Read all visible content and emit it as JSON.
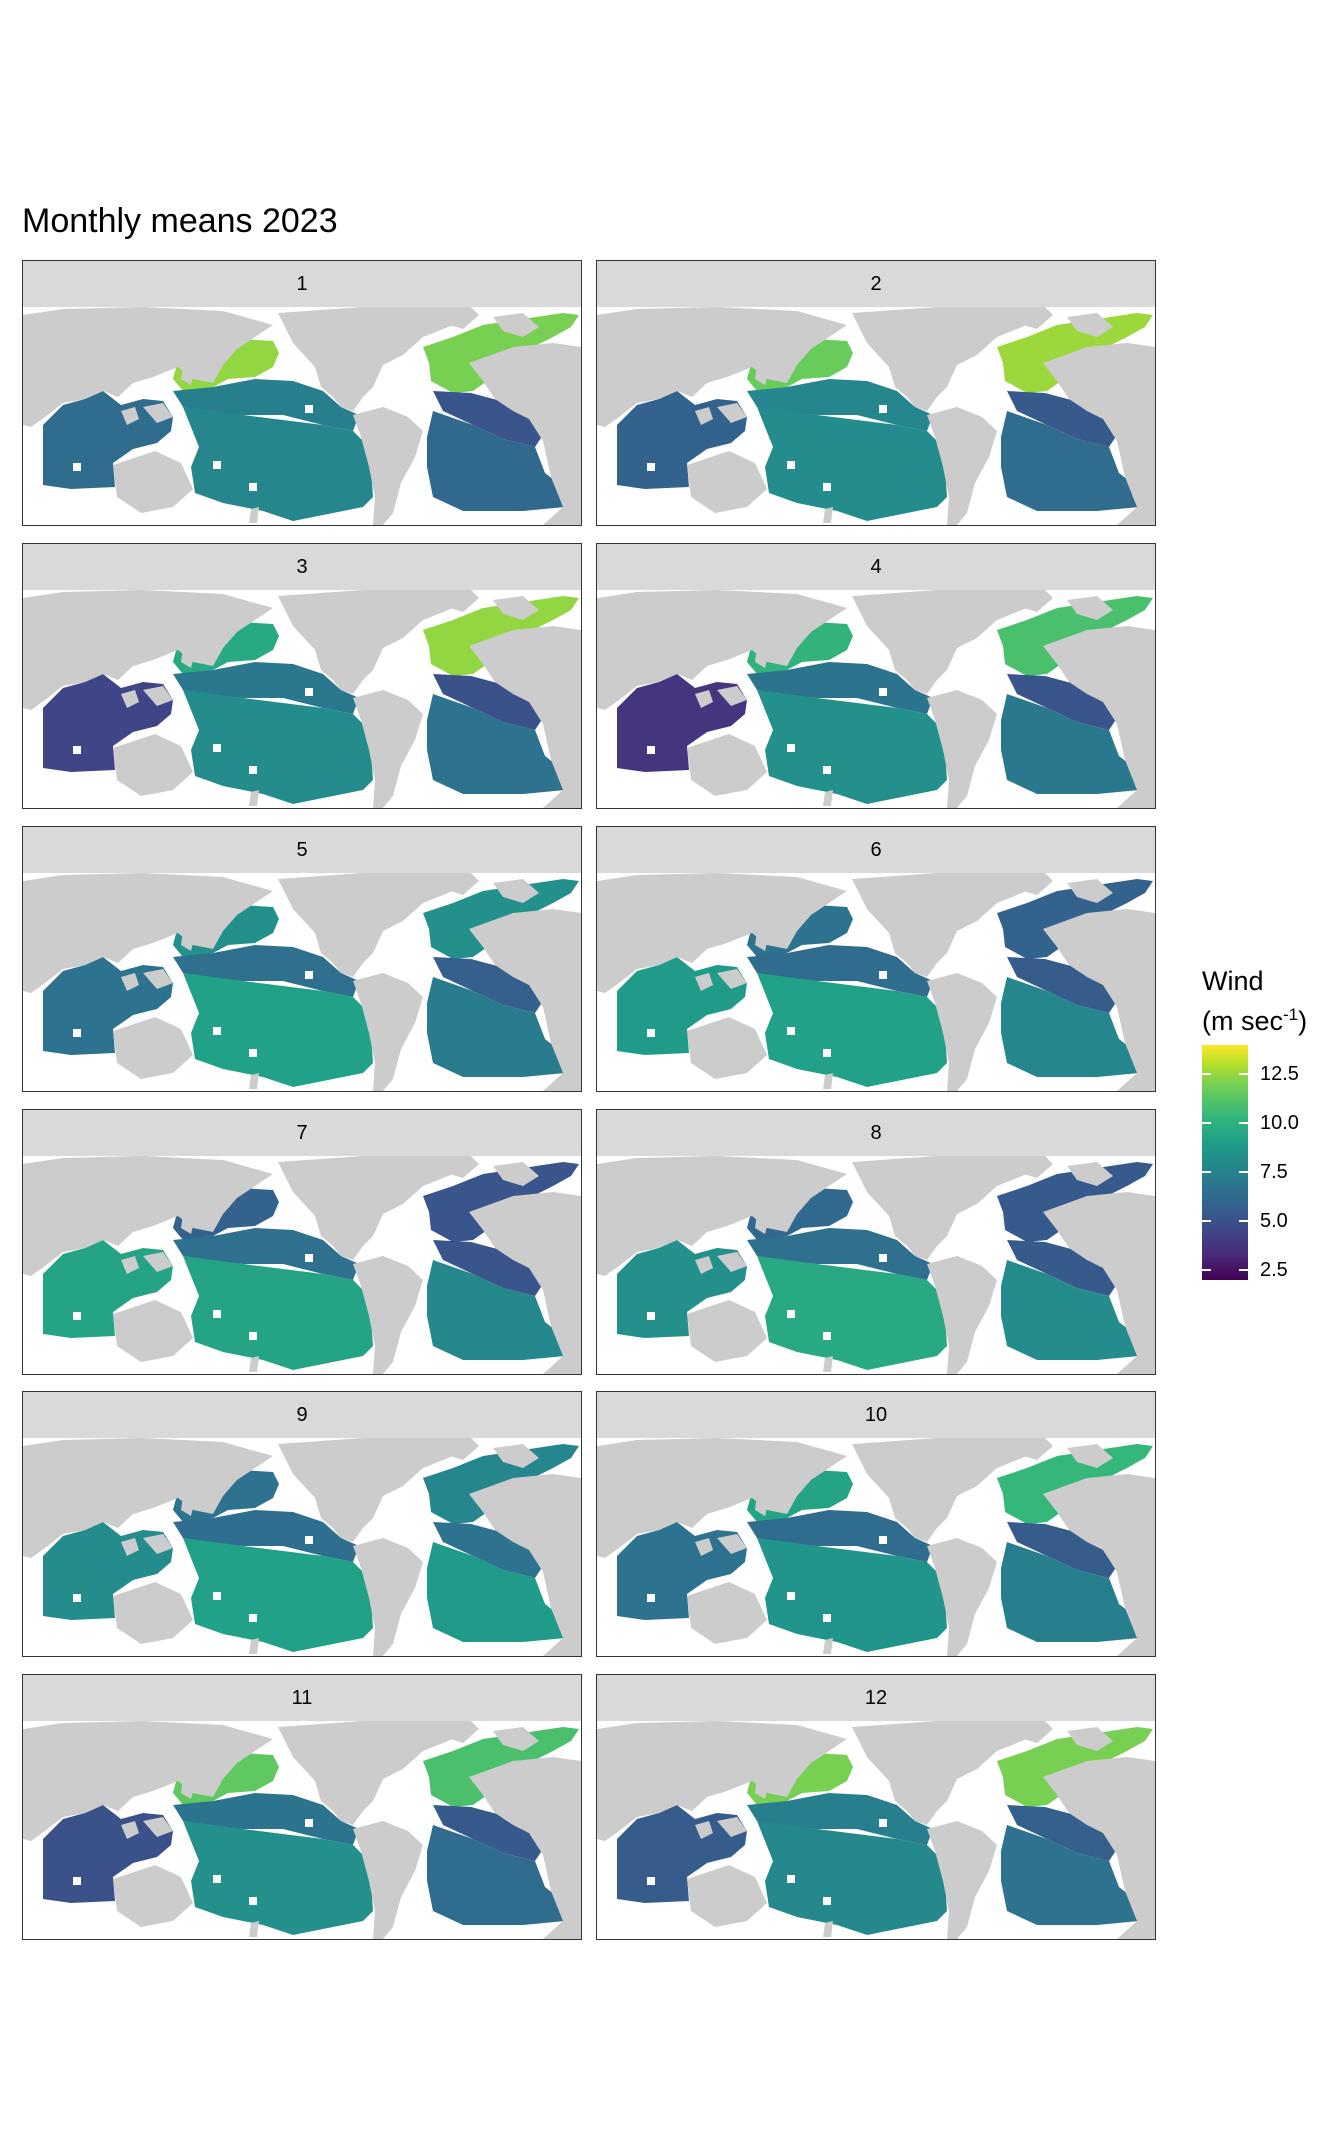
{
  "title": "Monthly means 2023",
  "panels": [
    {
      "label": "1",
      "north_pacific": 12.0,
      "tropical_pacific": 7.2,
      "south_pacific": 7.5,
      "north_atlantic": 11.5,
      "tropical_atlantic": 5.2,
      "south_atlantic": 6.0,
      "indian": 6.2
    },
    {
      "label": "2",
      "north_pacific": 11.2,
      "tropical_pacific": 7.5,
      "south_pacific": 7.8,
      "north_atlantic": 12.2,
      "tropical_atlantic": 5.4,
      "south_atlantic": 6.2,
      "indian": 5.8
    },
    {
      "label": "3",
      "north_pacific": 9.2,
      "tropical_pacific": 6.8,
      "south_pacific": 7.8,
      "north_atlantic": 12.0,
      "tropical_atlantic": 5.0,
      "south_atlantic": 6.5,
      "indian": 4.5
    },
    {
      "label": "4",
      "north_pacific": 9.8,
      "tropical_pacific": 6.6,
      "south_pacific": 8.0,
      "north_atlantic": 10.5,
      "tropical_atlantic": 5.2,
      "south_atlantic": 6.8,
      "indian": 3.8
    },
    {
      "label": "5",
      "north_pacific": 8.0,
      "tropical_pacific": 6.4,
      "south_pacific": 8.8,
      "north_atlantic": 8.0,
      "tropical_atlantic": 5.6,
      "south_atlantic": 7.0,
      "indian": 6.5
    },
    {
      "label": "6",
      "north_pacific": 6.5,
      "tropical_pacific": 6.2,
      "south_pacific": 8.8,
      "north_atlantic": 5.8,
      "tropical_atlantic": 5.5,
      "south_atlantic": 7.5,
      "indian": 8.5
    },
    {
      "label": "7",
      "north_pacific": 5.8,
      "tropical_pacific": 6.4,
      "south_pacific": 9.0,
      "north_atlantic": 5.2,
      "tropical_atlantic": 5.2,
      "south_atlantic": 7.6,
      "indian": 9.0
    },
    {
      "label": "8",
      "north_pacific": 6.0,
      "tropical_pacific": 6.4,
      "south_pacific": 9.2,
      "north_atlantic": 5.4,
      "tropical_atlantic": 5.4,
      "south_atlantic": 7.8,
      "indian": 8.0
    },
    {
      "label": "9",
      "north_pacific": 6.5,
      "tropical_pacific": 6.3,
      "south_pacific": 8.8,
      "north_atlantic": 7.5,
      "tropical_atlantic": 6.5,
      "south_atlantic": 8.5,
      "indian": 7.8
    },
    {
      "label": "10",
      "north_pacific": 9.0,
      "tropical_pacific": 6.2,
      "south_pacific": 8.2,
      "north_atlantic": 10.0,
      "tropical_atlantic": 5.5,
      "south_atlantic": 7.2,
      "indian": 6.5
    },
    {
      "label": "11",
      "north_pacific": 11.0,
      "tropical_pacific": 6.6,
      "south_pacific": 8.0,
      "north_atlantic": 10.5,
      "tropical_atlantic": 5.4,
      "south_atlantic": 6.2,
      "indian": 5.0
    },
    {
      "label": "12",
      "north_pacific": 11.5,
      "tropical_pacific": 7.2,
      "south_pacific": 7.6,
      "north_atlantic": 11.5,
      "tropical_atlantic": 5.6,
      "south_atlantic": 6.5,
      "indian": 5.5
    }
  ],
  "legend": {
    "title_line1": "Wind",
    "title_line2_prefix": "(m sec",
    "title_line2_sup": "-1",
    "title_line2_suffix": ")",
    "min": 2.0,
    "max": 14.0,
    "ticks": [
      {
        "value": 12.5,
        "label": "12.5"
      },
      {
        "value": 10.0,
        "label": "10.0"
      },
      {
        "value": 7.5,
        "label": "7.5"
      },
      {
        "value": 5.0,
        "label": "5.0"
      },
      {
        "value": 2.5,
        "label": "2.5"
      }
    ]
  },
  "colors": {
    "land": "#cccccc",
    "palette": "viridis"
  }
}
